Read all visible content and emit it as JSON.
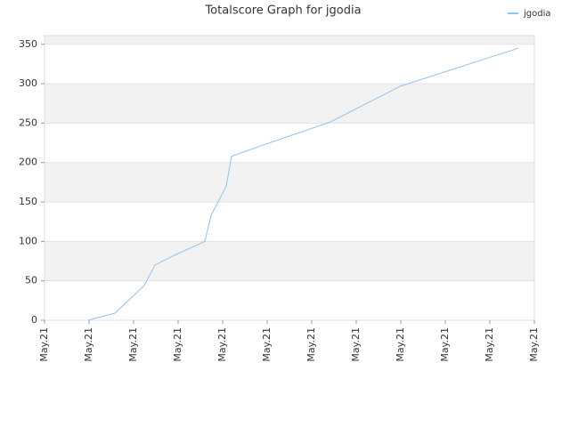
{
  "chart_data": {
    "type": "line",
    "title": "Totalscore Graph for jgodia",
    "x": [
      0.98,
      1.58,
      2.24,
      2.48,
      2.9,
      3.6,
      3.74,
      4.08,
      4.2,
      5.0,
      6.4,
      8.0,
      10.64
    ],
    "series": [
      {
        "name": "jgodia",
        "color": "#8ec3ee",
        "values": [
          0,
          9,
          44,
          70,
          82,
          100,
          133,
          170,
          208,
          224,
          251,
          297,
          345
        ]
      }
    ],
    "xlim": [
      0,
      11
    ],
    "xticks": [
      {
        "value": 0,
        "label": "May.21"
      },
      {
        "value": 1,
        "label": "May.21"
      },
      {
        "value": 2,
        "label": "May.21"
      },
      {
        "value": 3,
        "label": "May.21"
      },
      {
        "value": 4,
        "label": "May.21"
      },
      {
        "value": 5,
        "label": "May.21"
      },
      {
        "value": 6,
        "label": "May.21"
      },
      {
        "value": 7,
        "label": "May.21"
      },
      {
        "value": 8,
        "label": "May.21"
      },
      {
        "value": 9,
        "label": "May.21"
      },
      {
        "value": 10,
        "label": "May.21"
      },
      {
        "value": 11,
        "label": "May.21"
      }
    ],
    "ylim": [
      0,
      361
    ],
    "yticks": [
      0,
      50,
      100,
      150,
      200,
      250,
      300,
      350
    ],
    "grid": true,
    "legend": "top-right"
  }
}
